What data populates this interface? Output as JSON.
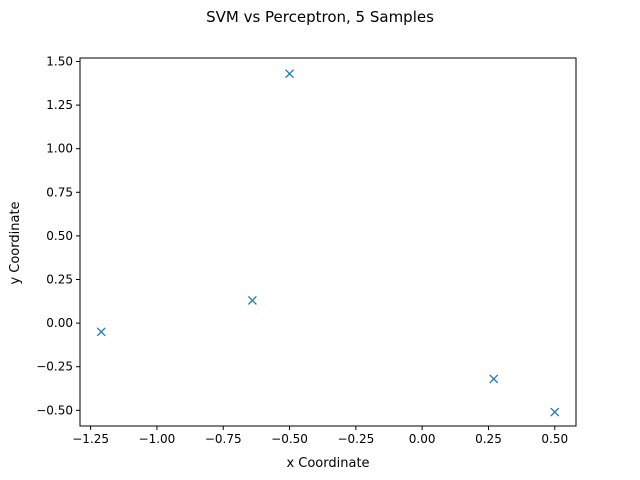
{
  "chart_data": {
    "type": "scatter",
    "title": "SVM vs Perceptron, 5 Samples",
    "xlabel": "x Coordinate",
    "ylabel": "y Coordinate",
    "xlim": [
      -1.29,
      0.58
    ],
    "ylim": [
      -0.59,
      1.52
    ],
    "xticks": [
      -1.25,
      -1.0,
      -0.75,
      -0.5,
      -0.25,
      0.0,
      0.25,
      0.5
    ],
    "xtick_labels": [
      "−1.25",
      "−1.00",
      "−0.75",
      "−0.50",
      "−0.25",
      "0.00",
      "0.25",
      "0.50"
    ],
    "yticks": [
      -0.5,
      -0.25,
      0.0,
      0.25,
      0.5,
      0.75,
      1.0,
      1.25,
      1.5
    ],
    "ytick_labels": [
      "−0.50",
      "−0.25",
      "0.00",
      "0.25",
      "0.50",
      "0.75",
      "1.00",
      "1.25",
      "1.50"
    ],
    "grid": false,
    "marker": "x",
    "color": "#1f77b4",
    "points": [
      {
        "x": -1.21,
        "y": -0.05
      },
      {
        "x": -0.64,
        "y": 0.13
      },
      {
        "x": -0.5,
        "y": 1.43
      },
      {
        "x": 0.27,
        "y": -0.32
      },
      {
        "x": 0.5,
        "y": -0.51
      }
    ]
  }
}
